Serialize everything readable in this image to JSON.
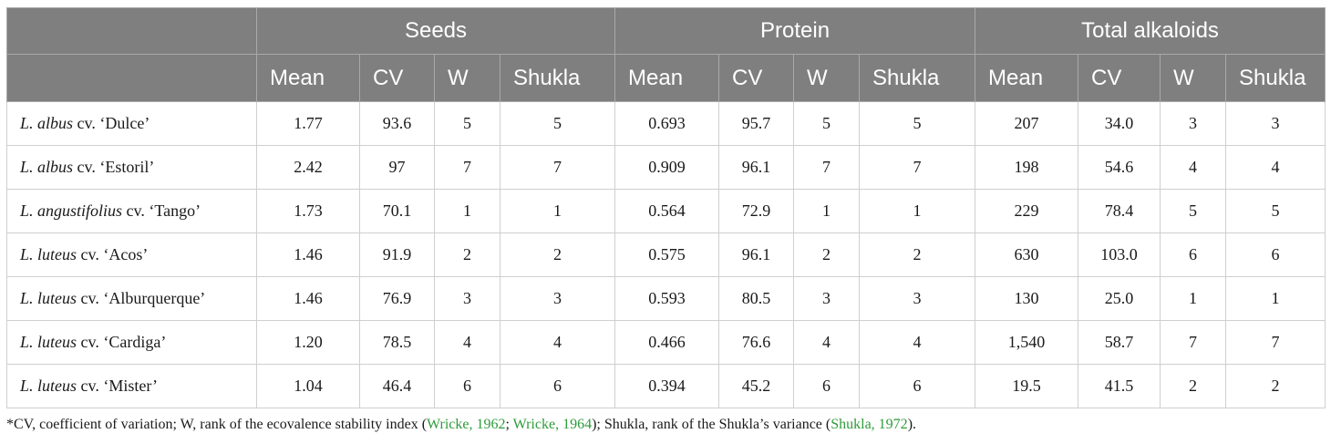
{
  "header": {
    "groups": [
      "Seeds",
      "Protein",
      "Total alkaloids"
    ],
    "sub": [
      "Mean",
      "CV",
      "W",
      "Shukla"
    ]
  },
  "rows": [
    {
      "genus": "L. albus",
      "cv_word": "cv.",
      "cultivar": "‘Dulce’",
      "values": [
        "1.77",
        "93.6",
        "5",
        "5",
        "0.693",
        "95.7",
        "5",
        "5",
        "207",
        "34.0",
        "3",
        "3"
      ]
    },
    {
      "genus": "L. albus",
      "cv_word": "cv.",
      "cultivar": "‘Estoril’",
      "values": [
        "2.42",
        "97",
        "7",
        "7",
        "0.909",
        "96.1",
        "7",
        "7",
        "198",
        "54.6",
        "4",
        "4"
      ]
    },
    {
      "genus": "L. angustifolius",
      "cv_word": "cv.",
      "cultivar": "‘Tango’",
      "values": [
        "1.73",
        "70.1",
        "1",
        "1",
        "0.564",
        "72.9",
        "1",
        "1",
        "229",
        "78.4",
        "5",
        "5"
      ]
    },
    {
      "genus": "L. luteus",
      "cv_word": "cv.",
      "cultivar": "‘Acos’",
      "values": [
        "1.46",
        "91.9",
        "2",
        "2",
        "0.575",
        "96.1",
        "2",
        "2",
        "630",
        "103.0",
        "6",
        "6"
      ]
    },
    {
      "genus": "L. luteus",
      "cv_word": "cv.",
      "cultivar": "‘Alburquerque’",
      "values": [
        "1.46",
        "76.9",
        "3",
        "3",
        "0.593",
        "80.5",
        "3",
        "3",
        "130",
        "25.0",
        "1",
        "1"
      ]
    },
    {
      "genus": "L. luteus",
      "cv_word": "cv.",
      "cultivar": "‘Cardiga’",
      "values": [
        "1.20",
        "78.5",
        "4",
        "4",
        "0.466",
        "76.6",
        "4",
        "4",
        "1,540",
        "58.7",
        "7",
        "7"
      ]
    },
    {
      "genus": "L. luteus",
      "cv_word": "cv.",
      "cultivar": "‘Mister’",
      "values": [
        "1.04",
        "46.4",
        "6",
        "6",
        "0.394",
        "45.2",
        "6",
        "6",
        "19.5",
        "41.5",
        "2",
        "2"
      ]
    }
  ],
  "footnote": {
    "part1": "*CV, coefficient of variation; W, rank of the ecovalence stability index (",
    "ref1": "Wricke, 1962",
    "sep": "; ",
    "ref2": "Wricke, 1964",
    "part2": "); Shukla, rank of the Shukla’s variance (",
    "ref3": "Shukla, 1972",
    "part3": ")."
  }
}
